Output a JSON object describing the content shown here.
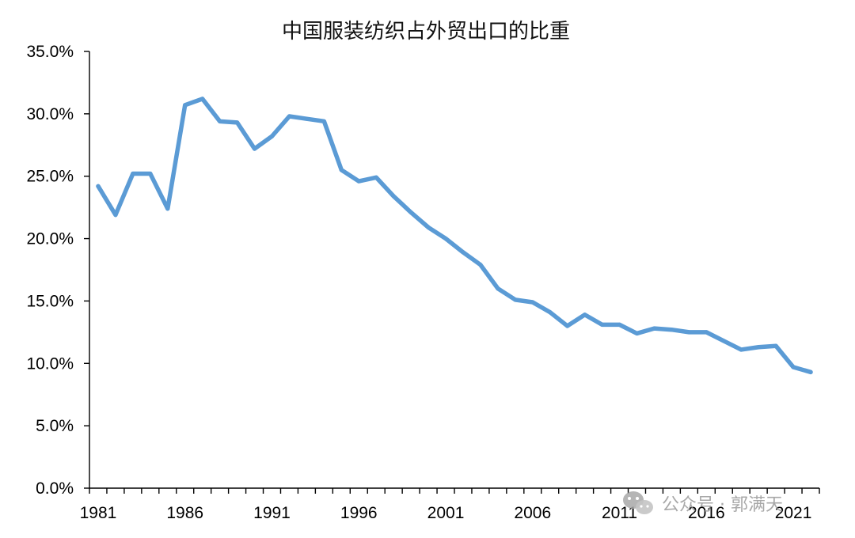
{
  "chart_data": {
    "type": "line",
    "title": "中国服装纺织占外贸出口的比重",
    "xlabel": "",
    "ylabel": "",
    "x": [
      1981,
      1982,
      1983,
      1984,
      1985,
      1986,
      1987,
      1988,
      1989,
      1990,
      1991,
      1992,
      1993,
      1994,
      1995,
      1996,
      1997,
      1998,
      1999,
      2000,
      2001,
      2002,
      2003,
      2004,
      2005,
      2006,
      2007,
      2008,
      2009,
      2010,
      2011,
      2012,
      2013,
      2014,
      2015,
      2016,
      2017,
      2018,
      2019,
      2020,
      2021,
      2022
    ],
    "x_tick_labels": [
      "1981",
      "1986",
      "1991",
      "1996",
      "2001",
      "2006",
      "2011",
      "2016",
      "2021"
    ],
    "ylim": [
      0,
      35
    ],
    "y_tick_labels": [
      "0.0%",
      "5.0%",
      "10.0%",
      "15.0%",
      "20.0%",
      "25.0%",
      "30.0%",
      "35.0%"
    ],
    "series": [
      {
        "values": [
          24.2,
          21.9,
          25.2,
          25.2,
          22.4,
          30.7,
          31.2,
          29.4,
          29.3,
          27.2,
          28.2,
          29.8,
          29.6,
          29.4,
          25.5,
          24.6,
          24.9,
          23.4,
          22.1,
          20.9,
          20.0,
          18.9,
          17.9,
          16.0,
          15.1,
          14.9,
          14.1,
          13.0,
          13.9,
          13.1,
          13.1,
          12.4,
          12.8,
          12.7,
          12.5,
          12.5,
          11.8,
          11.1,
          11.3,
          11.4,
          9.7,
          9.3
        ],
        "color": "#5b9bd5"
      }
    ],
    "grid": false,
    "legend": "none"
  },
  "watermark": {
    "text": "公众号 · 郭满天",
    "icon": "wechat-icon"
  }
}
